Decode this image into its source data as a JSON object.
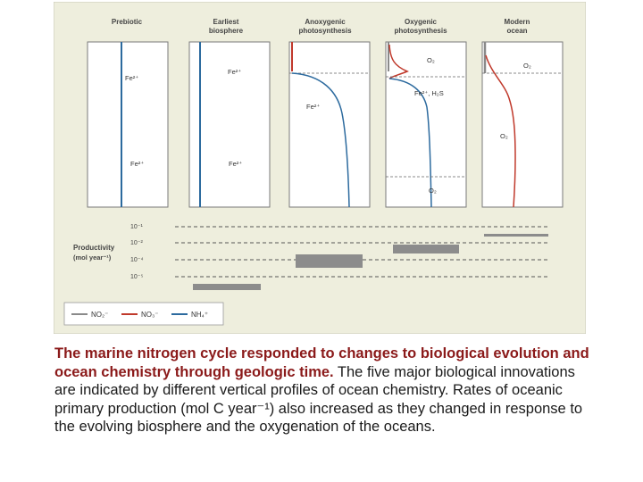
{
  "panels": [
    {
      "title": [
        "Prebiotic"
      ],
      "labels": [
        "Fe²⁺",
        "Fe²⁺"
      ]
    },
    {
      "title": [
        "Earliest",
        "biosphere"
      ],
      "labels": [
        "Fe²⁺",
        "Fe²⁺"
      ]
    },
    {
      "title": [
        "Anoxygenic",
        "photosynthesis"
      ],
      "labels": [
        "Fe²⁺"
      ]
    },
    {
      "title": [
        "Oxygenic",
        "photosynthesis"
      ],
      "labels": [
        "O₂",
        "Fe²⁺, H₂S",
        "O₂"
      ]
    },
    {
      "title": [
        "Modern",
        "ocean"
      ],
      "labels": [
        "O₂",
        "O₂"
      ]
    }
  ],
  "productivity": {
    "label": [
      "Productivity",
      "(mol year⁻¹)"
    ],
    "ticks": [
      "10⁻¹",
      "10⁻²",
      "10⁻⁴",
      "10⁻⁵"
    ]
  },
  "legend": {
    "items": [
      {
        "label": "NO₂⁻",
        "color": "#8a8a8a"
      },
      {
        "label": "NO₃⁻",
        "color": "#c0392b"
      },
      {
        "label": "NH₄⁺",
        "color": "#2c6a9e"
      }
    ]
  },
  "colors": {
    "background": "#eeeedd",
    "panel": "#ffffff",
    "panel_border": "#7a7a7a",
    "bar": "#8c8c8c",
    "nitrate": "#c0392b",
    "ammonium": "#2c6a9e",
    "nitrite": "#8a8a8a"
  },
  "caption": {
    "bold": "The marine nitrogen cycle responded to changes to biological evolution and ocean chemistry through geologic time.",
    "rest": " The five major biological innovations are indicated by different vertical profiles of ocean chemistry. Rates of oceanic primary production (mol C year⁻¹) also increased as they changed in response to the evolving biosphere and the oxygenation of the oceans."
  }
}
